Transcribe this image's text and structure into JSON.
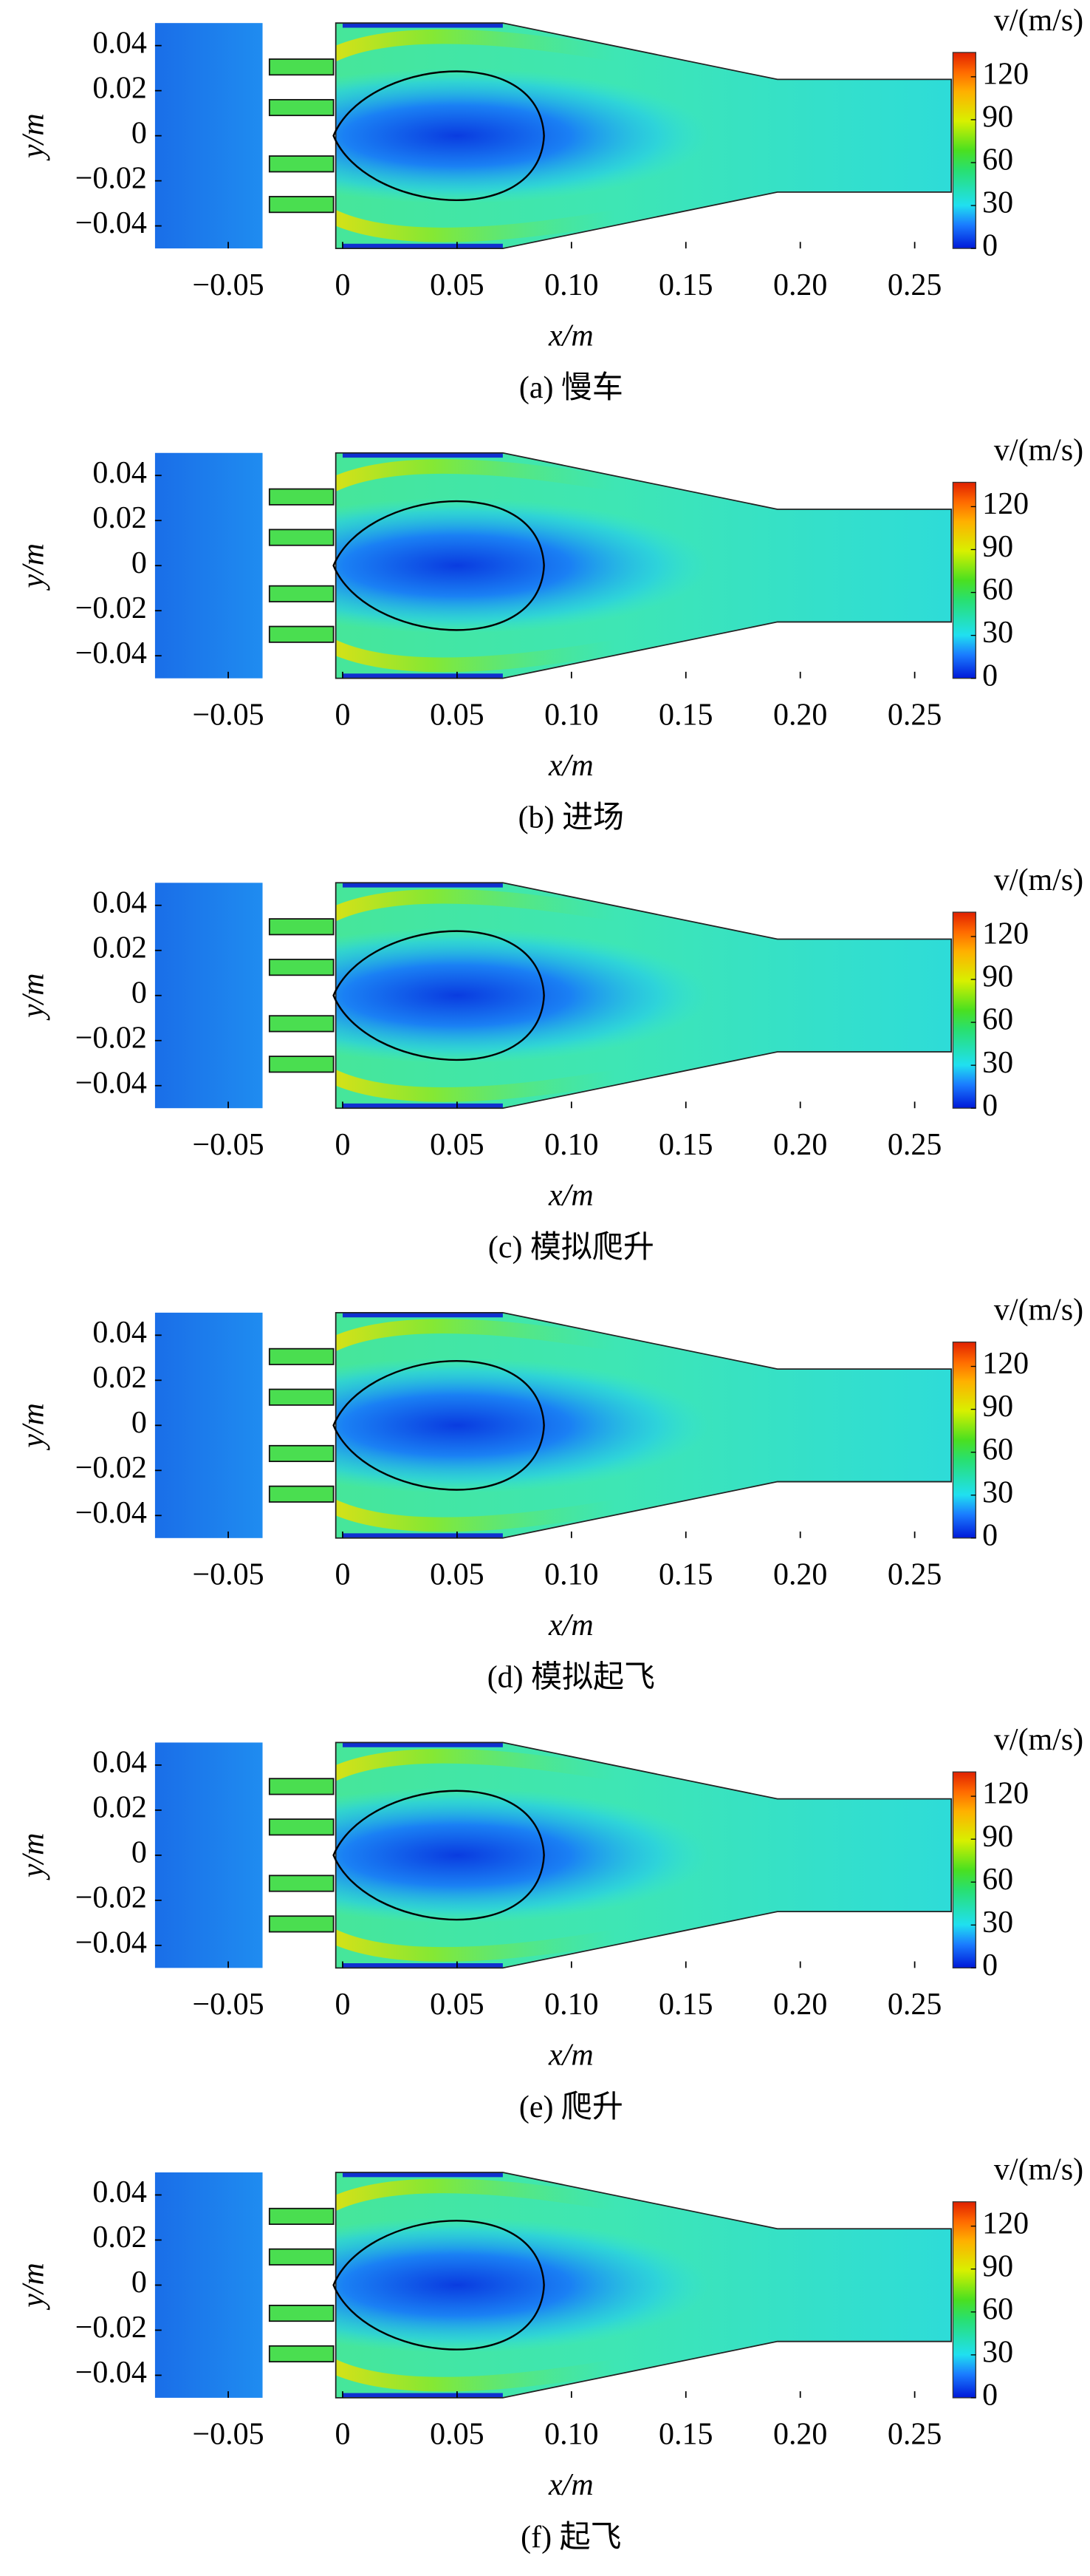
{
  "chart_data": [
    {
      "type": "contour",
      "title": "(a) 慢车",
      "xlabel": "x/m",
      "ylabel": "y/m",
      "colorbar_label": "v/(m/s)",
      "xlim": [
        -0.082,
        0.266
      ],
      "ylim": [
        -0.05,
        0.05
      ],
      "clim": [
        0,
        137
      ],
      "xticks": [
        {
          "value": -0.05,
          "label": "−0.05"
        },
        0,
        0.05,
        {
          "value": 0.1,
          "label": "0.10"
        },
        0.15,
        {
          "value": 0.2,
          "label": "0.20"
        },
        0.25
      ],
      "yticks": [
        {
          "value": -0.04,
          "label": "−0.04"
        },
        {
          "value": -0.02,
          "label": "−0.02"
        },
        0,
        0.02,
        0.04
      ],
      "cticks": [
        0,
        30,
        60,
        90,
        120
      ]
    },
    {
      "type": "contour",
      "title": "(b) 进场",
      "xlabel": "x/m",
      "ylabel": "y/m",
      "colorbar_label": "v/(m/s)",
      "xlim": [
        -0.082,
        0.266
      ],
      "ylim": [
        -0.05,
        0.05
      ],
      "clim": [
        0,
        137
      ],
      "xticks": [
        {
          "value": -0.05,
          "label": "−0.05"
        },
        0,
        0.05,
        {
          "value": 0.1,
          "label": "0.10"
        },
        0.15,
        {
          "value": 0.2,
          "label": "0.20"
        },
        0.25
      ],
      "yticks": [
        {
          "value": -0.04,
          "label": "−0.04"
        },
        {
          "value": -0.02,
          "label": "−0.02"
        },
        0,
        0.02,
        0.04
      ],
      "cticks": [
        0,
        30,
        60,
        90,
        120
      ]
    },
    {
      "type": "contour",
      "title": "(c) 模拟爬升",
      "xlabel": "x/m",
      "ylabel": "y/m",
      "colorbar_label": "v/(m/s)",
      "xlim": [
        -0.082,
        0.266
      ],
      "ylim": [
        -0.05,
        0.05
      ],
      "clim": [
        0,
        137
      ],
      "xticks": [
        {
          "value": -0.05,
          "label": "−0.05"
        },
        0,
        0.05,
        {
          "value": 0.1,
          "label": "0.10"
        },
        0.15,
        {
          "value": 0.2,
          "label": "0.20"
        },
        0.25
      ],
      "yticks": [
        {
          "value": -0.04,
          "label": "−0.04"
        },
        {
          "value": -0.02,
          "label": "−0.02"
        },
        0,
        0.02,
        0.04
      ],
      "cticks": [
        0,
        30,
        60,
        90,
        120
      ]
    },
    {
      "type": "contour",
      "title": "(d) 模拟起飞",
      "xlabel": "x/m",
      "ylabel": "y/m",
      "colorbar_label": "v/(m/s)",
      "xlim": [
        -0.082,
        0.266
      ],
      "ylim": [
        -0.05,
        0.05
      ],
      "clim": [
        0,
        137
      ],
      "xticks": [
        {
          "value": -0.05,
          "label": "−0.05"
        },
        0,
        0.05,
        {
          "value": 0.1,
          "label": "0.10"
        },
        0.15,
        {
          "value": 0.2,
          "label": "0.20"
        },
        0.25
      ],
      "yticks": [
        {
          "value": -0.04,
          "label": "−0.04"
        },
        {
          "value": -0.02,
          "label": "−0.02"
        },
        0,
        0.02,
        0.04
      ],
      "cticks": [
        0,
        30,
        60,
        90,
        120
      ]
    },
    {
      "type": "contour",
      "title": "(e) 爬升",
      "xlabel": "x/m",
      "ylabel": "y/m",
      "colorbar_label": "v/(m/s)",
      "xlim": [
        -0.082,
        0.266
      ],
      "ylim": [
        -0.05,
        0.05
      ],
      "clim": [
        0,
        137
      ],
      "xticks": [
        {
          "value": -0.05,
          "label": "−0.05"
        },
        0,
        0.05,
        {
          "value": 0.1,
          "label": "0.10"
        },
        0.15,
        {
          "value": 0.2,
          "label": "0.20"
        },
        0.25
      ],
      "yticks": [
        {
          "value": -0.04,
          "label": "−0.04"
        },
        {
          "value": -0.02,
          "label": "−0.02"
        },
        0,
        0.02,
        0.04
      ],
      "cticks": [
        0,
        30,
        60,
        90,
        120
      ]
    },
    {
      "type": "contour",
      "title": "(f) 起飞",
      "xlabel": "x/m",
      "ylabel": "y/m",
      "colorbar_label": "v/(m/s)",
      "xlim": [
        -0.082,
        0.266
      ],
      "ylim": [
        -0.05,
        0.05
      ],
      "clim": [
        0,
        137
      ],
      "xticks": [
        {
          "value": -0.05,
          "label": "−0.05"
        },
        0,
        0.05,
        {
          "value": 0.1,
          "label": "0.10"
        },
        0.15,
        {
          "value": 0.2,
          "label": "0.20"
        },
        0.25
      ],
      "yticks": [
        {
          "value": -0.04,
          "label": "−0.04"
        },
        {
          "value": -0.02,
          "label": "−0.02"
        },
        0,
        0.02,
        0.04
      ],
      "cticks": [
        0,
        30,
        60,
        90,
        120
      ]
    }
  ]
}
